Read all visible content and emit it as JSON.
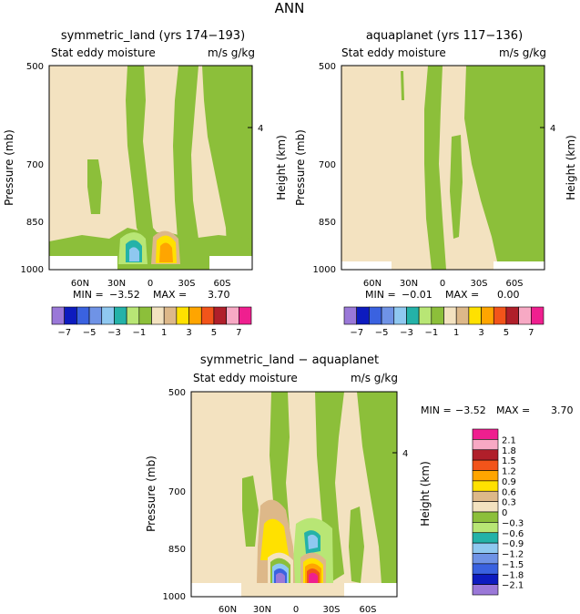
{
  "title": "ANN",
  "colors": {
    "tan": "#f3e2c0",
    "green": "#8cbf3a",
    "lightgreen": "#b8e675",
    "teal": "#24b2a8",
    "lightblue": "#8fc8f0",
    "blue": "#3a62e0",
    "darkblue": "#0d1bbf",
    "purple": "#9a78d8",
    "brownish": "#ddb889",
    "yellow": "#ffe100",
    "orange": "#ffa500",
    "redorange": "#f2541a",
    "darkred": "#b01f2a",
    "pink": "#f7a9c4",
    "magenta": "#ef1f8f",
    "white": "#ffffff"
  },
  "chart_data": [
    {
      "type": "contour",
      "title": "symmetric_land (yrs 174−193)",
      "subtitle_left": "Stat eddy moisture",
      "subtitle_right": "m/s g/kg",
      "ylabel": "Pressure (mb)",
      "ylabel_right": "Height (km)",
      "yticks": [
        "500",
        "700",
        "850",
        "1000"
      ],
      "yticks_right": [
        "4"
      ],
      "xticks": [
        "60N",
        "30N",
        "0",
        "30S",
        "60S"
      ],
      "min_label": "MIN =",
      "min": "−3.52",
      "max_label": "MAX =",
      "max": "3.70"
    },
    {
      "type": "contour",
      "title": "aquaplanet (yrs 117−136)",
      "subtitle_left": "Stat eddy moisture",
      "subtitle_right": "m/s g/kg",
      "ylabel": "Pressure (mb)",
      "ylabel_right": "Height (km)",
      "yticks": [
        "500",
        "700",
        "850",
        "1000"
      ],
      "yticks_right": [
        "4"
      ],
      "xticks": [
        "60N",
        "30N",
        "0",
        "30S",
        "60S"
      ],
      "min_label": "MIN =",
      "min": "−0.01",
      "max_label": "MAX =",
      "max": "0.00"
    },
    {
      "type": "contour",
      "title": "symmetric_land − aquaplanet",
      "subtitle_left": "Stat eddy moisture",
      "subtitle_right": "m/s g/kg",
      "ylabel": "Pressure (mb)",
      "ylabel_right": "Height (km)",
      "yticks": [
        "500",
        "700",
        "850",
        "1000"
      ],
      "yticks_right": [
        "4"
      ],
      "xticks": [
        "60N",
        "30N",
        "0",
        "30S",
        "60S"
      ],
      "min_label": "MIN =",
      "min": "−3.52",
      "max_label": "MAX =",
      "max": "3.70"
    }
  ],
  "colorbar_top": {
    "levels": [
      "−7",
      "−5",
      "−3",
      "−1",
      "1",
      "3",
      "5",
      "7"
    ]
  },
  "colorbar_bottom": {
    "levels": [
      "2.1",
      "1.8",
      "1.5",
      "1.2",
      "0.9",
      "0.6",
      "0.3",
      "0",
      "−0.3",
      "−0.6",
      "−0.9",
      "−1.2",
      "−1.5",
      "−1.8",
      "−2.1"
    ]
  }
}
